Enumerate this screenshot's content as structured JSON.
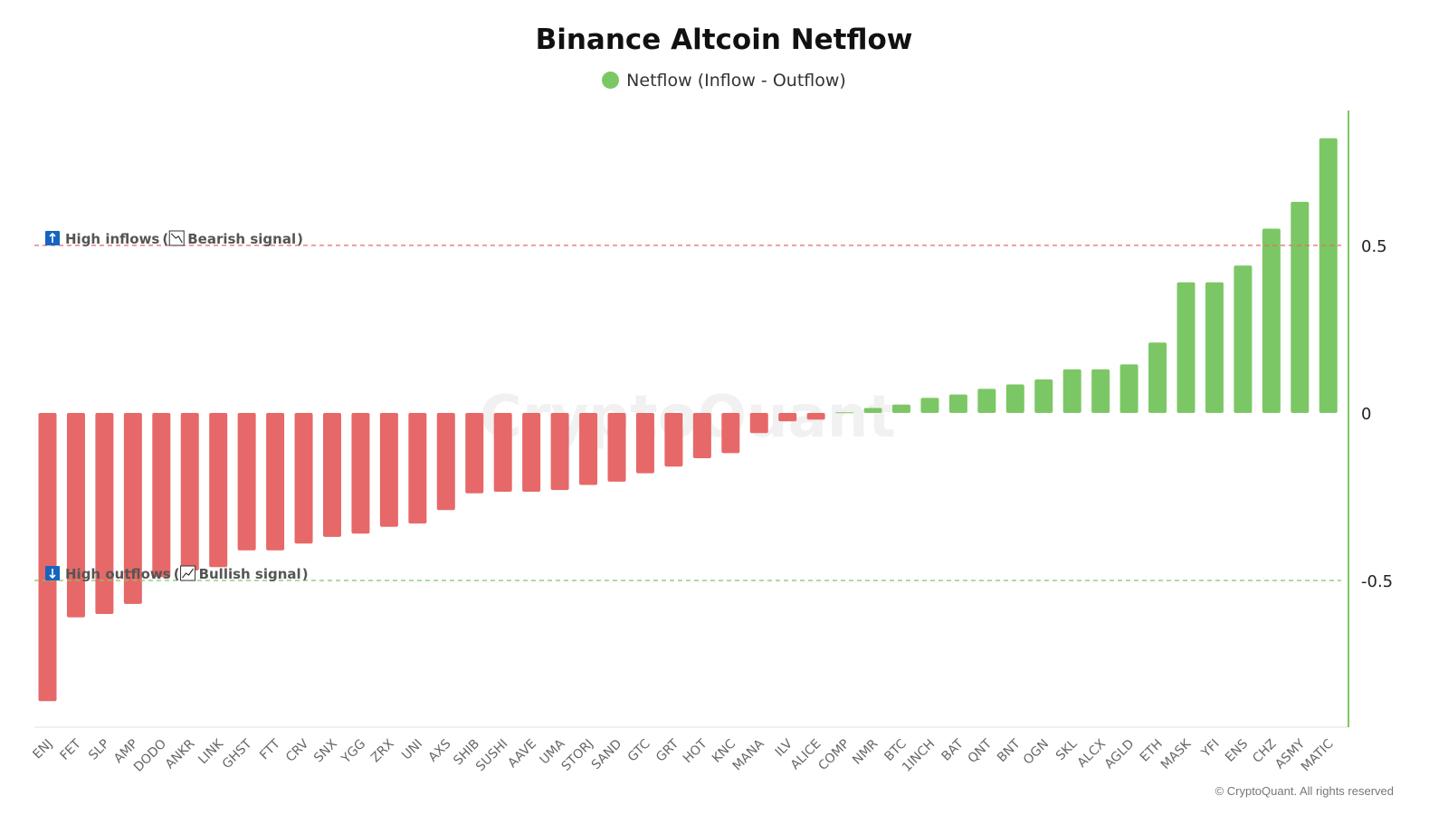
{
  "chart_data": {
    "type": "bar",
    "title": "Binance Altcoin Netflow",
    "legend": {
      "label": "Netflow (Inflow - Outflow)",
      "placement": "top-center",
      "color": "#7cc765"
    },
    "categories": [
      "ENJ",
      "FET",
      "SLP",
      "AMP",
      "DODO",
      "ANKR",
      "LINK",
      "GHST",
      "FTT",
      "CRV",
      "SNX",
      "YGG",
      "ZRX",
      "UNI",
      "AXS",
      "SHIB",
      "SUSHI",
      "AAVE",
      "UMA",
      "STORJ",
      "SAND",
      "GTC",
      "GRT",
      "HOT",
      "KNC",
      "MANA",
      "ILV",
      "ALICE",
      "COMP",
      "NMR",
      "BTC",
      "1INCH",
      "BAT",
      "QNT",
      "BNT",
      "OGN",
      "SKL",
      "ALCX",
      "AGLD",
      "ETH",
      "MASK",
      "YFI",
      "ENS",
      "CHZ",
      "ASMY",
      "MATIC"
    ],
    "values": [
      -0.86,
      -0.61,
      -0.6,
      -0.57,
      -0.49,
      -0.47,
      -0.46,
      -0.41,
      -0.41,
      -0.39,
      -0.37,
      -0.36,
      -0.34,
      -0.33,
      -0.29,
      -0.24,
      -0.235,
      -0.235,
      -0.23,
      -0.215,
      -0.205,
      -0.18,
      -0.16,
      -0.135,
      -0.12,
      -0.06,
      -0.025,
      -0.02,
      0.002,
      0.015,
      0.025,
      0.045,
      0.055,
      0.072,
      0.085,
      0.1,
      0.13,
      0.13,
      0.145,
      0.21,
      0.39,
      0.39,
      0.44,
      0.55,
      0.63,
      0.82
    ],
    "ylim": [
      -0.95,
      0.9
    ],
    "yticks": [
      0.5,
      0,
      -0.5
    ],
    "ytick_labels": [
      "0.5",
      "0",
      "-0.5"
    ],
    "y_axis_side": "right",
    "positive_color": "#7cc765",
    "negative_color": "#e76868",
    "thresholds": [
      {
        "value": 0.5,
        "color": "#e76868",
        "icon": "up-arrow-icon",
        "signal_icon": "bearish-chart-icon",
        "label_main": "High inflows",
        "label_signal": "Bearish signal",
        "open_paren": "(",
        "close_paren": ")"
      },
      {
        "value": -0.5,
        "color": "#7cc765",
        "icon": "down-arrow-icon",
        "signal_icon": "bullish-chart-icon",
        "label_main": "High outflows",
        "label_signal": "Bullish signal",
        "open_paren": "(",
        "close_paren": ")"
      }
    ],
    "watermark": "CryptoQuant",
    "copyright": "© CryptoQuant. All rights reserved"
  }
}
